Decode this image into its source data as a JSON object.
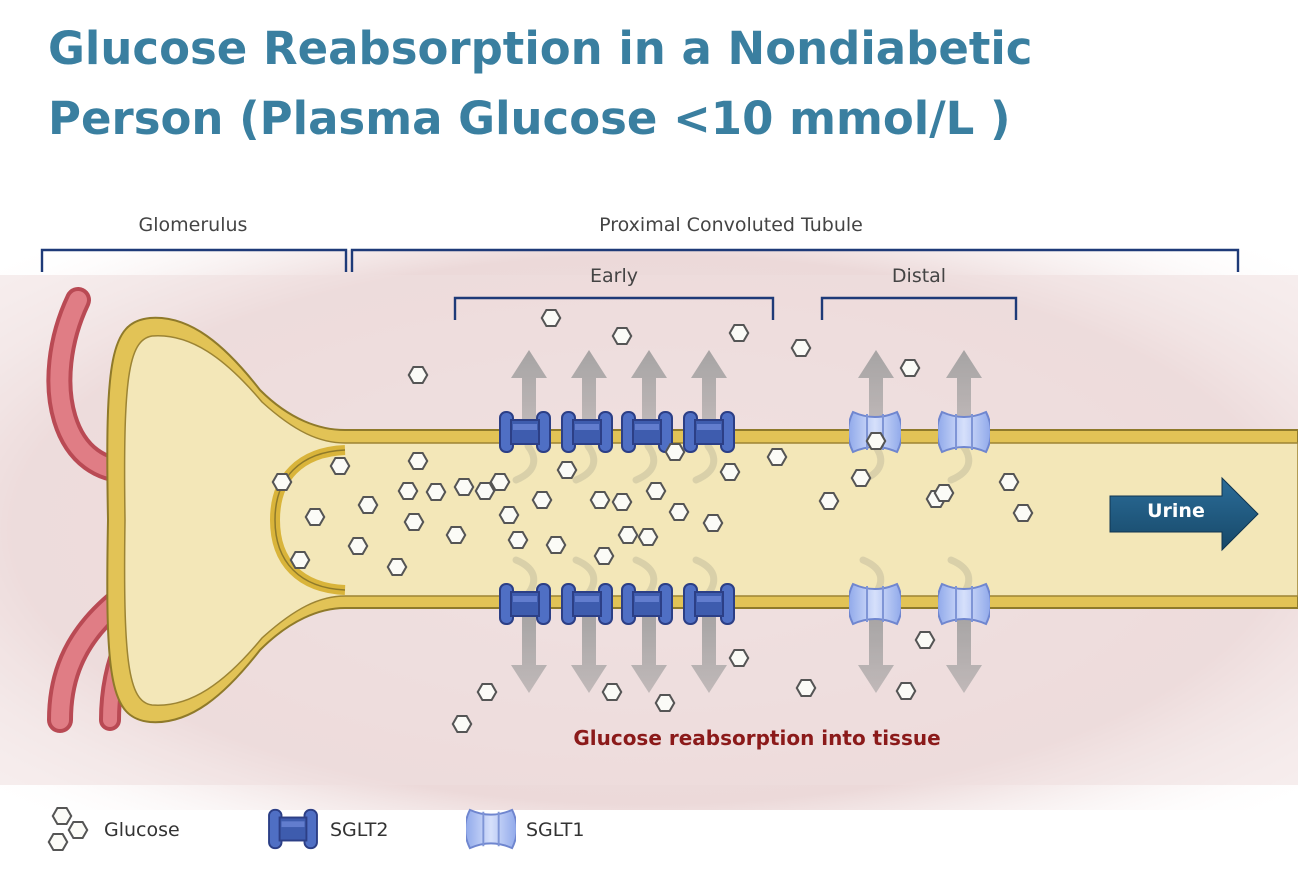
{
  "title": {
    "line1": "Glucose Reabsorption in a Nondiabetic",
    "line2": "Person (Plasma Glucose <10 mmol/L )"
  },
  "regions": {
    "glomerulus": "Glomerulus",
    "pct": "Proximal  Convoluted Tubule",
    "early": "Early",
    "distal": "Distal"
  },
  "flow_label": "Urine",
  "tissue_label": "Glucose reabsorption into tissue",
  "legend": {
    "glucose": "Glucose",
    "sglt2": "SGLT2",
    "sglt1": "SGLT1"
  },
  "colors": {
    "title": "#3a7fa0",
    "tissue_text": "#8b1a1a",
    "tube_wall": "#d9b43a",
    "tube_lumen": "#f3e7b8",
    "sglt2": "#4f6fc4",
    "sglt1": "#a9bff0",
    "urine_arrow": "#1f5a82",
    "bracket": "#1e3a78",
    "capillary": "#d9616a"
  }
}
